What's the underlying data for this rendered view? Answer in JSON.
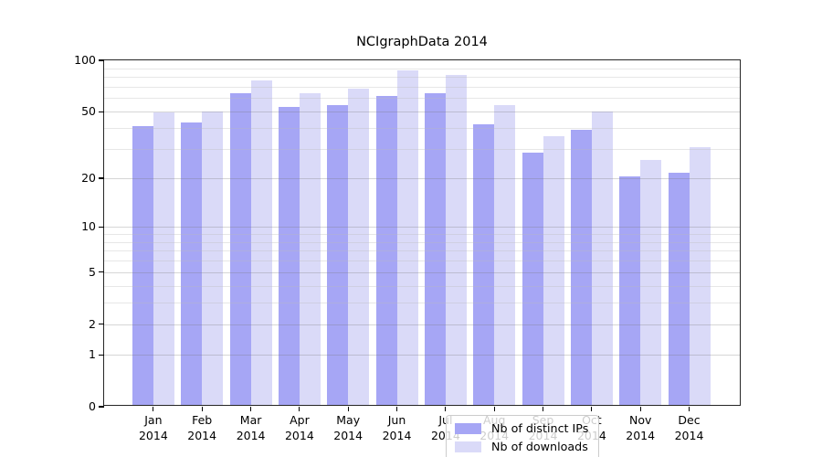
{
  "chart_data": {
    "type": "bar",
    "title": "NCIgraphData 2014",
    "categories": [
      "Jan 2014",
      "Feb 2014",
      "Mar 2014",
      "Apr 2014",
      "May 2014",
      "Jun 2014",
      "Jul 2014",
      "Aug 2014",
      "Sep 2014",
      "Oct 2014",
      "Nov 2014",
      "Dec 2014"
    ],
    "series": [
      {
        "name": "Nb of distinct IPs",
        "values": [
          40,
          42,
          63,
          52,
          53,
          60,
          63,
          41,
          28,
          38,
          20,
          21
        ]
      },
      {
        "name": "Nb of downloads",
        "values": [
          48,
          49,
          74,
          63,
          67,
          85,
          80,
          53,
          35,
          49,
          25,
          30
        ]
      }
    ],
    "xlabel": "",
    "ylabel": "",
    "y_scale": "log10(value+1)",
    "y_ticks": [
      0,
      1,
      2,
      5,
      10,
      20,
      50,
      100
    ],
    "y_minor_ticks": [
      3,
      4,
      6,
      7,
      8,
      9,
      30,
      40,
      60,
      70,
      80,
      90
    ],
    "ylim": [
      0,
      100
    ],
    "grid": true,
    "legend_position": "lower center"
  },
  "legend": {
    "items": [
      {
        "label": "Nb of distinct IPs",
        "color_key": "distinct_ips"
      },
      {
        "label": "Nb of downloads",
        "color_key": "downloads"
      }
    ]
  },
  "colors": {
    "distinct_ips": "#a6a6f5",
    "downloads": "#dadaf8",
    "grid_major": "#d7d7d7",
    "grid_minor": "#e9e9e9",
    "axis": "#262626",
    "legend_border": "#cccccc",
    "legend_bg": "rgba(255,255,255,0.8)",
    "text": "#000000"
  }
}
